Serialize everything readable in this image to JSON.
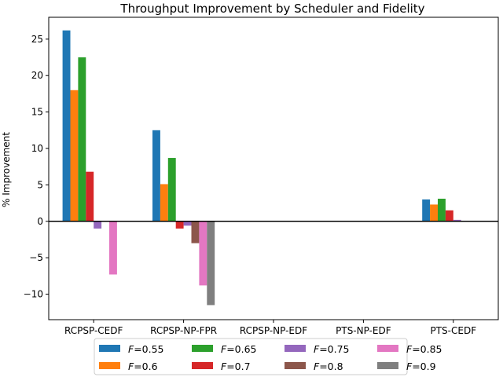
{
  "chart_data": {
    "type": "bar",
    "title": "Throughput Improvement by Scheduler and Fidelity",
    "xlabel": "",
    "ylabel": "% Improvement",
    "ylim": [
      -13.5,
      28
    ],
    "yticks": [
      -10,
      -5,
      0,
      5,
      10,
      15,
      20,
      25
    ],
    "categories": [
      "RCPSP-CEDF",
      "RCPSP-NP-FPR",
      "RCPSP-NP-EDF",
      "PTS-NP-EDF",
      "PTS-CEDF"
    ],
    "legend": {
      "placement": "bottom-center",
      "columns": 4,
      "var_prefix": "F"
    },
    "series": [
      {
        "name": "F=0.55",
        "label": "0.55",
        "color": "#1f77b4",
        "values": [
          26.2,
          12.5,
          0,
          0,
          3.0
        ]
      },
      {
        "name": "F=0.6",
        "label": "0.6",
        "color": "#ff7f0e",
        "values": [
          18.0,
          5.1,
          0,
          0,
          2.3
        ]
      },
      {
        "name": "F=0.65",
        "label": "0.65",
        "color": "#2ca02c",
        "values": [
          22.5,
          8.7,
          0,
          0,
          3.1
        ]
      },
      {
        "name": "F=0.7",
        "label": "0.7",
        "color": "#d62728",
        "values": [
          6.8,
          -1.0,
          0,
          0,
          1.5
        ]
      },
      {
        "name": "F=0.75",
        "label": "0.75",
        "color": "#9467bd",
        "values": [
          -1.0,
          -0.6,
          0,
          0,
          0.2
        ]
      },
      {
        "name": "F=0.8",
        "label": "0.8",
        "color": "#8c564b",
        "values": [
          0,
          -3.0,
          0,
          0,
          0
        ]
      },
      {
        "name": "F=0.85",
        "label": "0.85",
        "color": "#e377c2",
        "values": [
          -7.3,
          -8.8,
          0,
          0,
          0
        ]
      },
      {
        "name": "F=0.9",
        "label": "0.9",
        "color": "#7f7f7f",
        "values": [
          0,
          -11.5,
          0,
          0,
          0
        ]
      }
    ]
  }
}
